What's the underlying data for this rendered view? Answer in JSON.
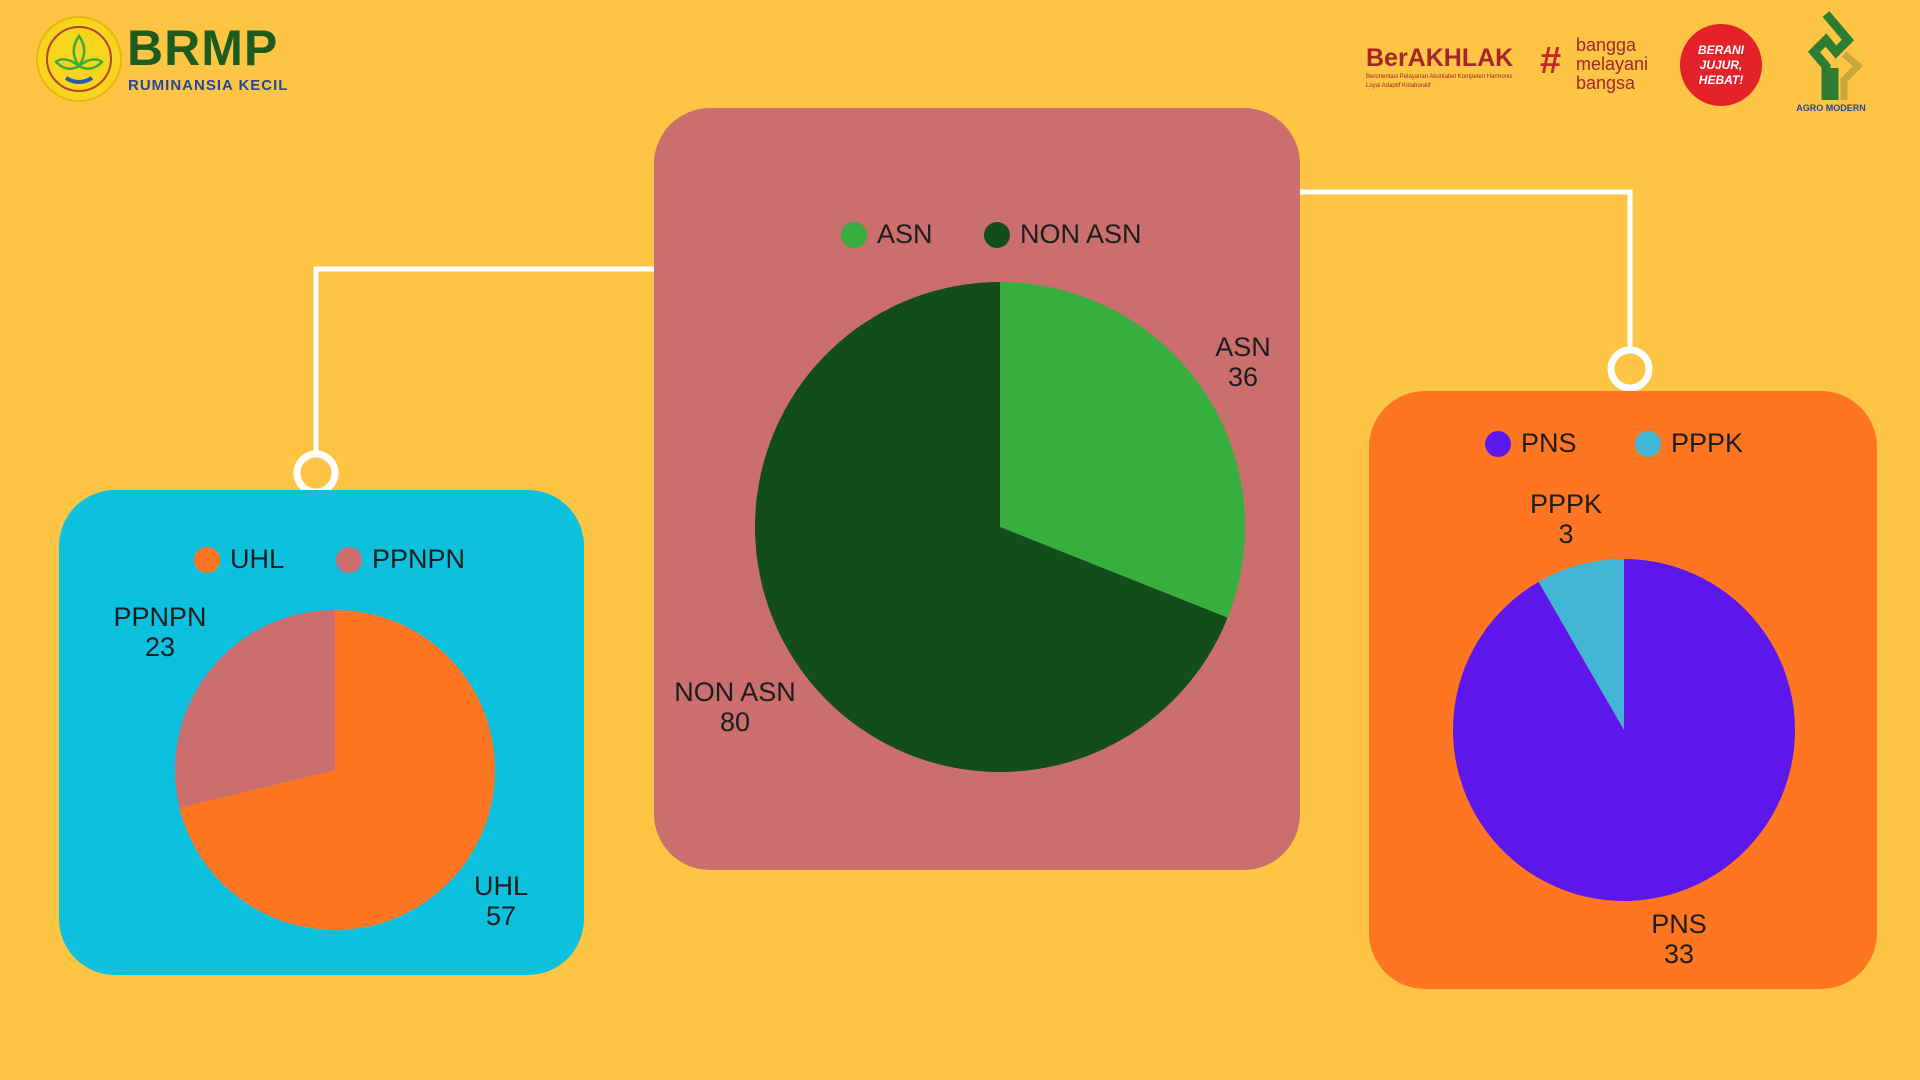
{
  "header": {
    "logo_left": {
      "title": "BRMP",
      "subtitle": "RUMINANSIA KECIL"
    },
    "logos_right": {
      "berakhlak": {
        "title": "BerAKHLAK",
        "tagline": "Berorientasi Pelayanan Akuntabel Kompeten Harmonis Loyal Adaptif Kolaboratif"
      },
      "bangga": {
        "lines": [
          "bangga",
          "melayani",
          "bangsa"
        ]
      },
      "berani": {
        "lines": [
          "BERANI",
          "JUJUR,",
          "HEBAT!"
        ]
      },
      "agro": {
        "caption": "AGRO MODERN"
      }
    }
  },
  "colors": {
    "background": "#FEC544",
    "asn": "#36AF3E",
    "non_asn": "#124D1B",
    "uhl": "#FE7622",
    "ppnpn": "#CB6E6E",
    "pns": "#5E17EB",
    "pppk": "#41B6D5"
  },
  "chart_data": [
    {
      "id": "asn",
      "type": "pie",
      "card_color": "#CB6E6E",
      "legend": [
        "ASN",
        "NON ASN"
      ],
      "slices": [
        {
          "label": "ASN",
          "value": 36,
          "color": "#36AF3E"
        },
        {
          "label": "NON ASN",
          "value": 80,
          "color": "#124D1B"
        }
      ]
    },
    {
      "id": "nonasn",
      "type": "pie",
      "card_color": "#0DC0DE",
      "legend": [
        "UHL",
        "PPNPN"
      ],
      "slices": [
        {
          "label": "UHL",
          "value": 57,
          "color": "#FE7622"
        },
        {
          "label": "PPNPN",
          "value": 23,
          "color": "#CB6E6E"
        }
      ]
    },
    {
      "id": "asn_breakdown",
      "type": "pie",
      "card_color": "#FE7622",
      "legend": [
        "PNS",
        "PPPK"
      ],
      "slices": [
        {
          "label": "PNS",
          "value": 33,
          "color": "#5E17EB"
        },
        {
          "label": "PPPK",
          "value": 3,
          "color": "#41B6D5"
        }
      ]
    }
  ]
}
